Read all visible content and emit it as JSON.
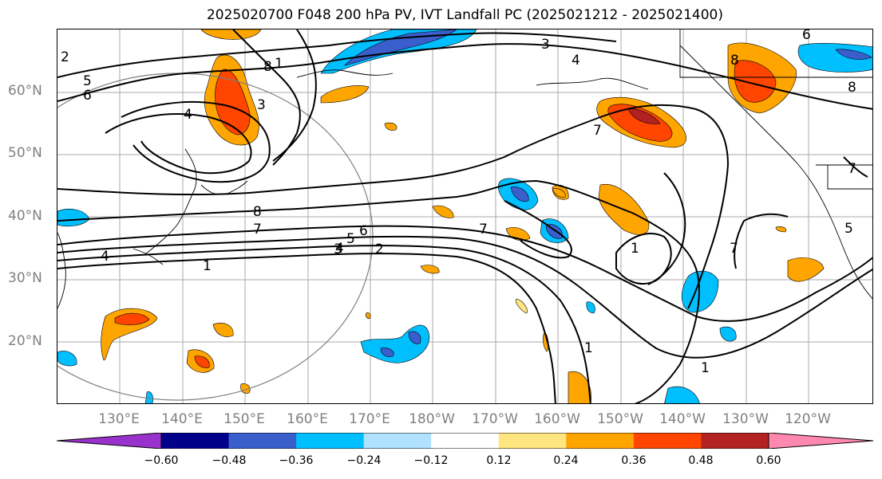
{
  "title": "2025020700 F048 200 hPa PV, IVT Landfall PC (2025021212 - 2025021400)",
  "lat_labels": [
    "60°N",
    "50°N",
    "40°N",
    "30°N",
    "20°N"
  ],
  "lon_labels": [
    "130°E",
    "140°E",
    "150°E",
    "160°E",
    "170°E",
    "180°W",
    "170°W",
    "160°W",
    "150°W",
    "140°W",
    "130°W",
    "120°W"
  ],
  "contour_labels": [
    "2",
    "5",
    "6",
    "8",
    "1",
    "3",
    "4",
    "3",
    "4",
    "8",
    "7",
    "8",
    "7",
    "6",
    "5",
    "4",
    "3",
    "2",
    "1",
    "4",
    "7",
    "1",
    "7",
    "1",
    "1",
    "5",
    "8",
    "7",
    "6"
  ],
  "colorbar": {
    "ticks": [
      "−0.60",
      "−0.48",
      "−0.36",
      "−0.24",
      "−0.12",
      "0.12",
      "0.24",
      "0.36",
      "0.48",
      "0.60"
    ],
    "colors": [
      "#9932cc",
      "#00008b",
      "#3a5fcd",
      "#00bfff",
      "#b0e2ff",
      "#ffffff",
      "#ffe680",
      "#ffa500",
      "#ff4500",
      "#b22222",
      "#ff88b0"
    ]
  }
}
